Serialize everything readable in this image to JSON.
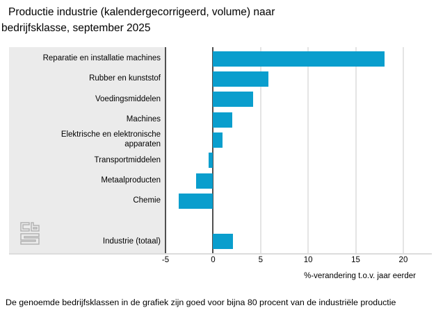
{
  "title": {
    "line1": "Productie industrie (kalendergecorrigeerd, volume) naar",
    "line2": "bedrijfsklasse, september 2025",
    "full": "Productie industrie (kalendergecorrigeerd, volume) naar bedrijfsklasse, september 2025"
  },
  "footer": {
    "text": "De genoemde bedrijfsklassen in de grafiek zijn goed voor bijna 80 procent van de industriële productie"
  },
  "logo": {
    "name": "cbs-logo",
    "color": "#b3b3b3"
  },
  "chart_data": {
    "type": "bar",
    "orientation": "horizontal",
    "title": "Productie industrie (kalendergecorrigeerd, volume) naar bedrijfsklasse, september 2025",
    "xlabel": "%-verandering t.o.v. jaar eerder",
    "categories": [
      "Reparatie en installatie machines",
      "Rubber en kunststof",
      "Voedingsmiddelen",
      "Machines",
      "Elektrische en elektronische apparaten",
      "Transportmiddelen",
      "Metaalproducten",
      "Chemie",
      "Industrie (totaal)"
    ],
    "values": [
      18,
      5.8,
      4.2,
      2,
      1,
      -0.5,
      -1.8,
      -3.6,
      2.1
    ],
    "total_row_separated": true,
    "xlim": [
      -5,
      23
    ],
    "xticks": [
      -5,
      0,
      5,
      10,
      15,
      20
    ],
    "grid": true,
    "legend": false,
    "bar_color": "#0a9ecd",
    "zero_line_color": "#4f4f4f",
    "gridline_color": "#e4e4e4",
    "panel_color": "#ebebeb"
  }
}
